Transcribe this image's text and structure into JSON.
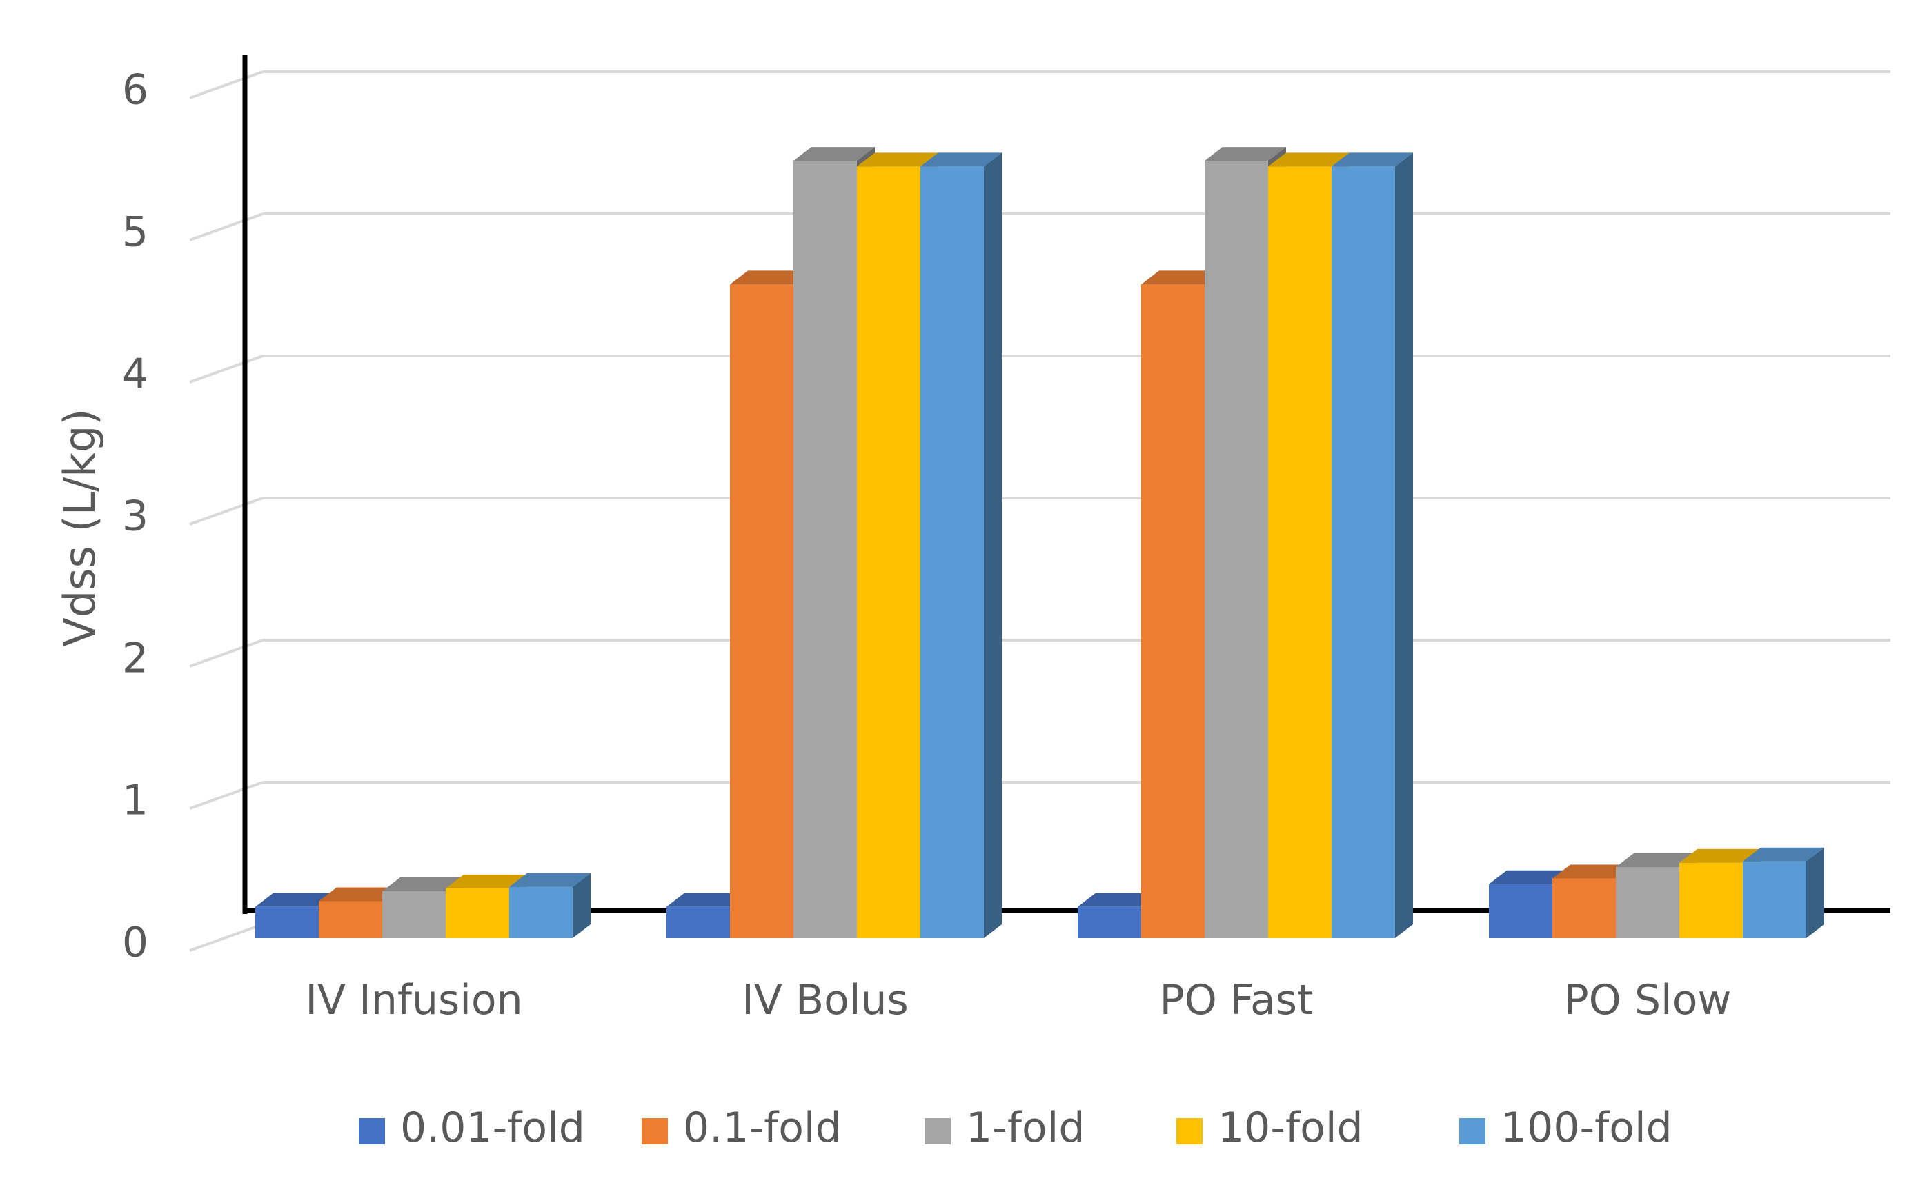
{
  "chart_data": {
    "type": "bar",
    "subtype": "3d-clustered-column",
    "title": "",
    "xlabel": "",
    "ylabel": "Vdss (L/kg)",
    "ylim": [
      0,
      6
    ],
    "yticks": [
      0,
      1,
      2,
      3,
      4,
      5,
      6
    ],
    "ytick_labels": [
      "0",
      "1",
      "2",
      "3",
      "4",
      "5",
      "6"
    ],
    "grid": true,
    "legend_position": "bottom",
    "categories": [
      "IV Infusion",
      "IV Bolus",
      "PO Fast",
      "PO Slow"
    ],
    "series": [
      {
        "name": "0.01-fold",
        "color": "#4472C4",
        "values": [
          0.22,
          0.22,
          0.22,
          0.38
        ]
      },
      {
        "name": "0.1-fold",
        "color": "#ED7D31",
        "values": [
          0.26,
          4.6,
          4.6,
          0.42
        ]
      },
      {
        "name": "1-fold",
        "color": "#A5A5A5",
        "values": [
          0.33,
          5.47,
          5.47,
          0.5
        ]
      },
      {
        "name": "10-fold",
        "color": "#FFC000",
        "values": [
          0.35,
          5.43,
          5.43,
          0.53
        ]
      },
      {
        "name": "100-fold",
        "color": "#5B9BD5",
        "values": [
          0.36,
          5.43,
          5.43,
          0.54
        ]
      }
    ]
  }
}
